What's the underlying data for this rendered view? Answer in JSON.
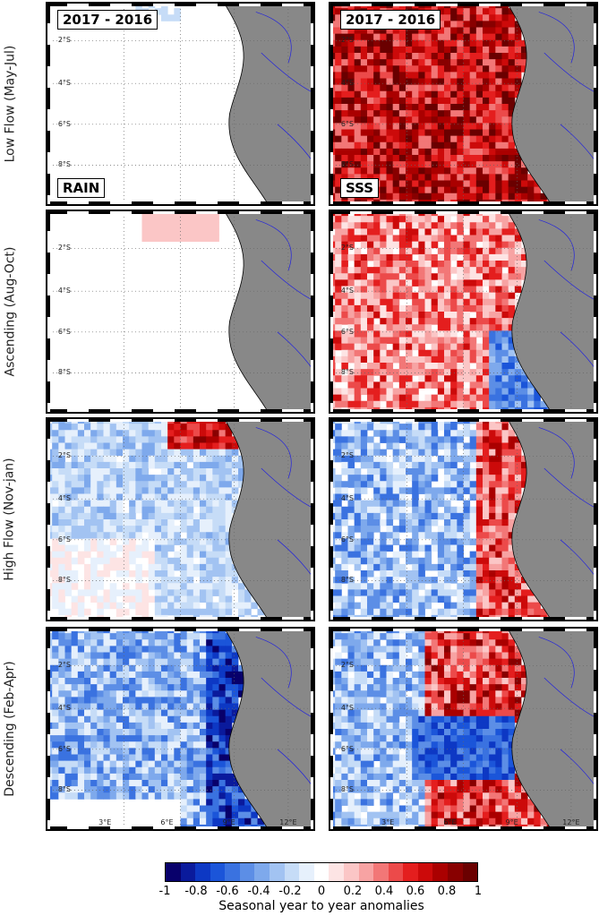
{
  "rows": [
    {
      "label": "Low Flow (May-Jul)",
      "key": "low_flow",
      "rain_level": 0.0,
      "rain_seed": 3
    },
    {
      "label": "Ascending (Aug-Oct)",
      "key": "ascending",
      "rain_level": 0.05,
      "rain_seed": 7
    },
    {
      "label": "High Flow (Nov-jan)",
      "key": "high_flow",
      "rain_level": -0.15,
      "rain_seed": 11
    },
    {
      "label": "Descending (Feb-Apr)",
      "key": "descending",
      "rain_level": -0.45,
      "rain_seed": 17
    }
  ],
  "panel_tags": {
    "period": "2017 - 2016",
    "rain": "RAIN",
    "sss": "SSS"
  },
  "lat_ticks": [
    "2°S",
    "4°S",
    "6°S",
    "8°S"
  ],
  "lon_ticks": [
    "3°E",
    "6°E",
    "9°E",
    "12°E"
  ],
  "colorbar": {
    "title": "Seasonal year to year anomalies",
    "ticks": [
      "-1",
      "-0.8",
      "-0.6",
      "-0.4",
      "-0.2",
      "0",
      "0.2",
      "0.4",
      "0.6",
      "0.8",
      "1"
    ],
    "min": -1,
    "max": 1,
    "colors": [
      "#08006b",
      "#0a1a9c",
      "#0d38c4",
      "#1b55d9",
      "#3a72e0",
      "#5c8ee6",
      "#7ea9ec",
      "#a2c3f2",
      "#c6dcf7",
      "#e6f0fc",
      "#ffffff",
      "#fde4e4",
      "#fbc6c6",
      "#f7a3a3",
      "#f27777",
      "#ec4a4a",
      "#e41e1e",
      "#cc0a0a",
      "#aa0000",
      "#880000",
      "#6a0000"
    ]
  },
  "colors": {
    "land": "#888888",
    "coast": "#000000",
    "river": "#2222dd",
    "grid": "#666666"
  },
  "sss_levels": {
    "low_flow": 0.7,
    "ascending": 0.35,
    "high_flow": -0.3,
    "descending": 0.55
  }
}
